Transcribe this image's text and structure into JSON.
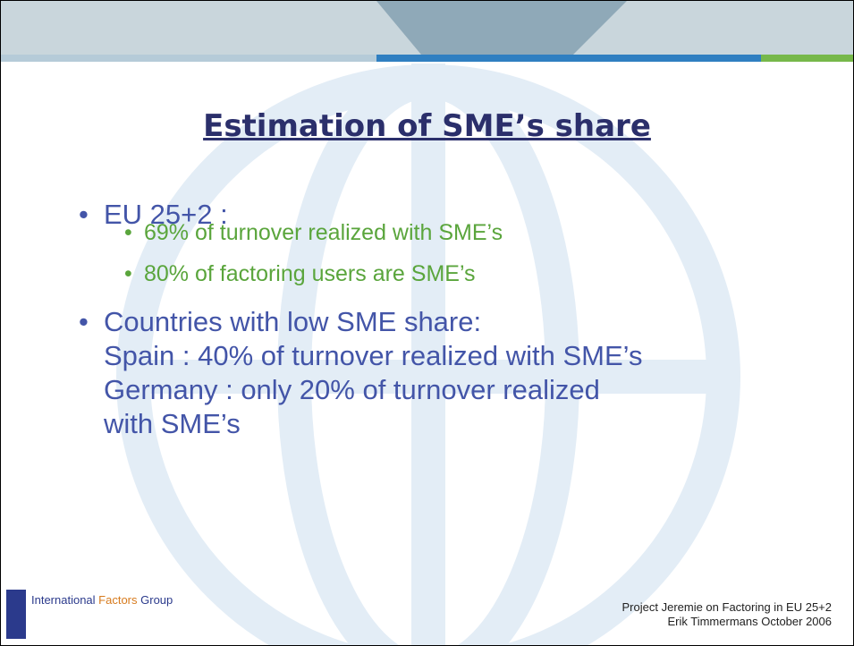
{
  "slide": {
    "title": "Estimation of SME’s share",
    "bullets": [
      {
        "text": "EU 25+2 :",
        "sub": [
          "69% of turnover realized with SME’s",
          "80% of factoring users are SME’s"
        ]
      },
      {
        "lines": [
          "Countries with low SME share:",
          "Spain : 40% of turnover realized with SME’s",
          "Germany : only 20% of turnover realized",
          "with SME’s"
        ]
      }
    ],
    "logo": {
      "part1": "International ",
      "part2": "Factors",
      "part3": " Group"
    },
    "footer": [
      "Project Jeremie on Factoring in EU 25+2",
      "Erik Timmermans October 2006"
    ]
  }
}
